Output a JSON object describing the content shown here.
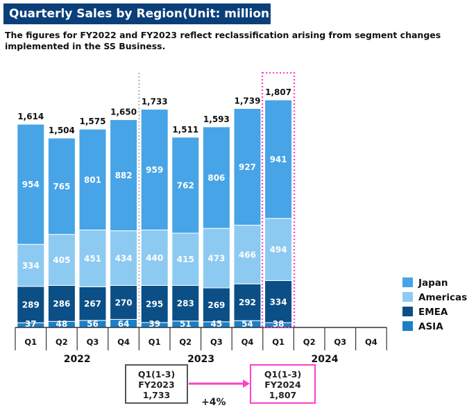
{
  "title": "Quarterly Sales by Region(Unit: million yen)",
  "subtitle": "The figures for FY2022 and FY2023 reflect reclassification arising from segment changes implemented in the SS Business.",
  "colors": {
    "Japan": "#47a4e6",
    "Americas": "#8dcaf2",
    "EMEA": "#0b4f86",
    "ASIA": "#1b7fc8",
    "highlight": "#ff3fc8",
    "title_bg": "#0b3f7a"
  },
  "chart_data": {
    "type": "bar",
    "stacked": true,
    "ylim": [
      0,
      2000
    ],
    "categories": [
      "Q1",
      "Q2",
      "Q3",
      "Q4",
      "Q1",
      "Q2",
      "Q3",
      "Q4",
      "Q1",
      "Q2",
      "Q3",
      "Q4"
    ],
    "year_groups": [
      {
        "label": "2022",
        "quarters": [
          0,
          3
        ]
      },
      {
        "label": "2023",
        "quarters": [
          4,
          7
        ]
      },
      {
        "label": "2024",
        "quarters": [
          8,
          11
        ]
      }
    ],
    "series": [
      {
        "name": "ASIA",
        "values": [
          37,
          48,
          56,
          64,
          39,
          51,
          45,
          54,
          38,
          null,
          null,
          null
        ]
      },
      {
        "name": "EMEA",
        "values": [
          289,
          286,
          267,
          270,
          295,
          283,
          269,
          292,
          334,
          null,
          null,
          null
        ]
      },
      {
        "name": "Americas",
        "values": [
          334,
          405,
          451,
          434,
          440,
          415,
          473,
          466,
          494,
          null,
          null,
          null
        ]
      },
      {
        "name": "Japan",
        "values": [
          954,
          765,
          801,
          882,
          959,
          762,
          806,
          927,
          941,
          null,
          null,
          null
        ]
      }
    ],
    "totals": [
      1614,
      1504,
      1575,
      1650,
      1733,
      1511,
      1593,
      1739,
      1807,
      null,
      null,
      null
    ],
    "legend": [
      "Japan",
      "Americas",
      "EMEA",
      "ASIA"
    ],
    "legend_position": "right"
  },
  "comparison": {
    "left": {
      "line1": "Q1(1-3)",
      "line2": "FY2023",
      "line3": "1,733"
    },
    "right": {
      "line1": "Q1(1-3)",
      "line2": "FY2024",
      "line3": "1,807"
    },
    "growth": "+4%"
  }
}
